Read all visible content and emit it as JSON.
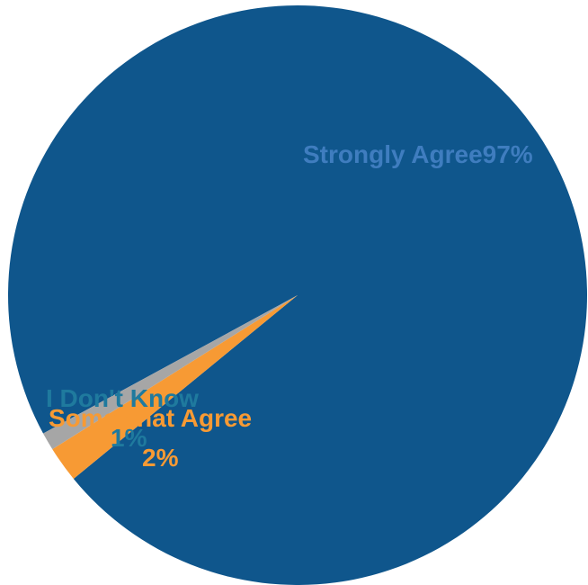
{
  "chart_data": {
    "type": "pie",
    "title": "",
    "slices": [
      {
        "name": "Strongly Agree",
        "value": 97,
        "label": "Strongly Agree97%",
        "color": "#0F568C"
      },
      {
        "name": "Somewhat Agree",
        "value": 2,
        "label_line1": "Somewhat Agree",
        "label_line2": "2%",
        "color": "#F79A34"
      },
      {
        "name": "I Don't Know",
        "value": 1,
        "label_line1": "I Don't Know",
        "label_line2": "1%",
        "color": "#A6A6A6"
      }
    ],
    "label_colors": {
      "strongly_agree": "#3F7DBF",
      "somewhat_agree": "#F79A34",
      "dont_know": "#1F7A9E"
    },
    "legend": "none",
    "start": "lower-left, counter-clockwise order from gray to orange to blue"
  }
}
